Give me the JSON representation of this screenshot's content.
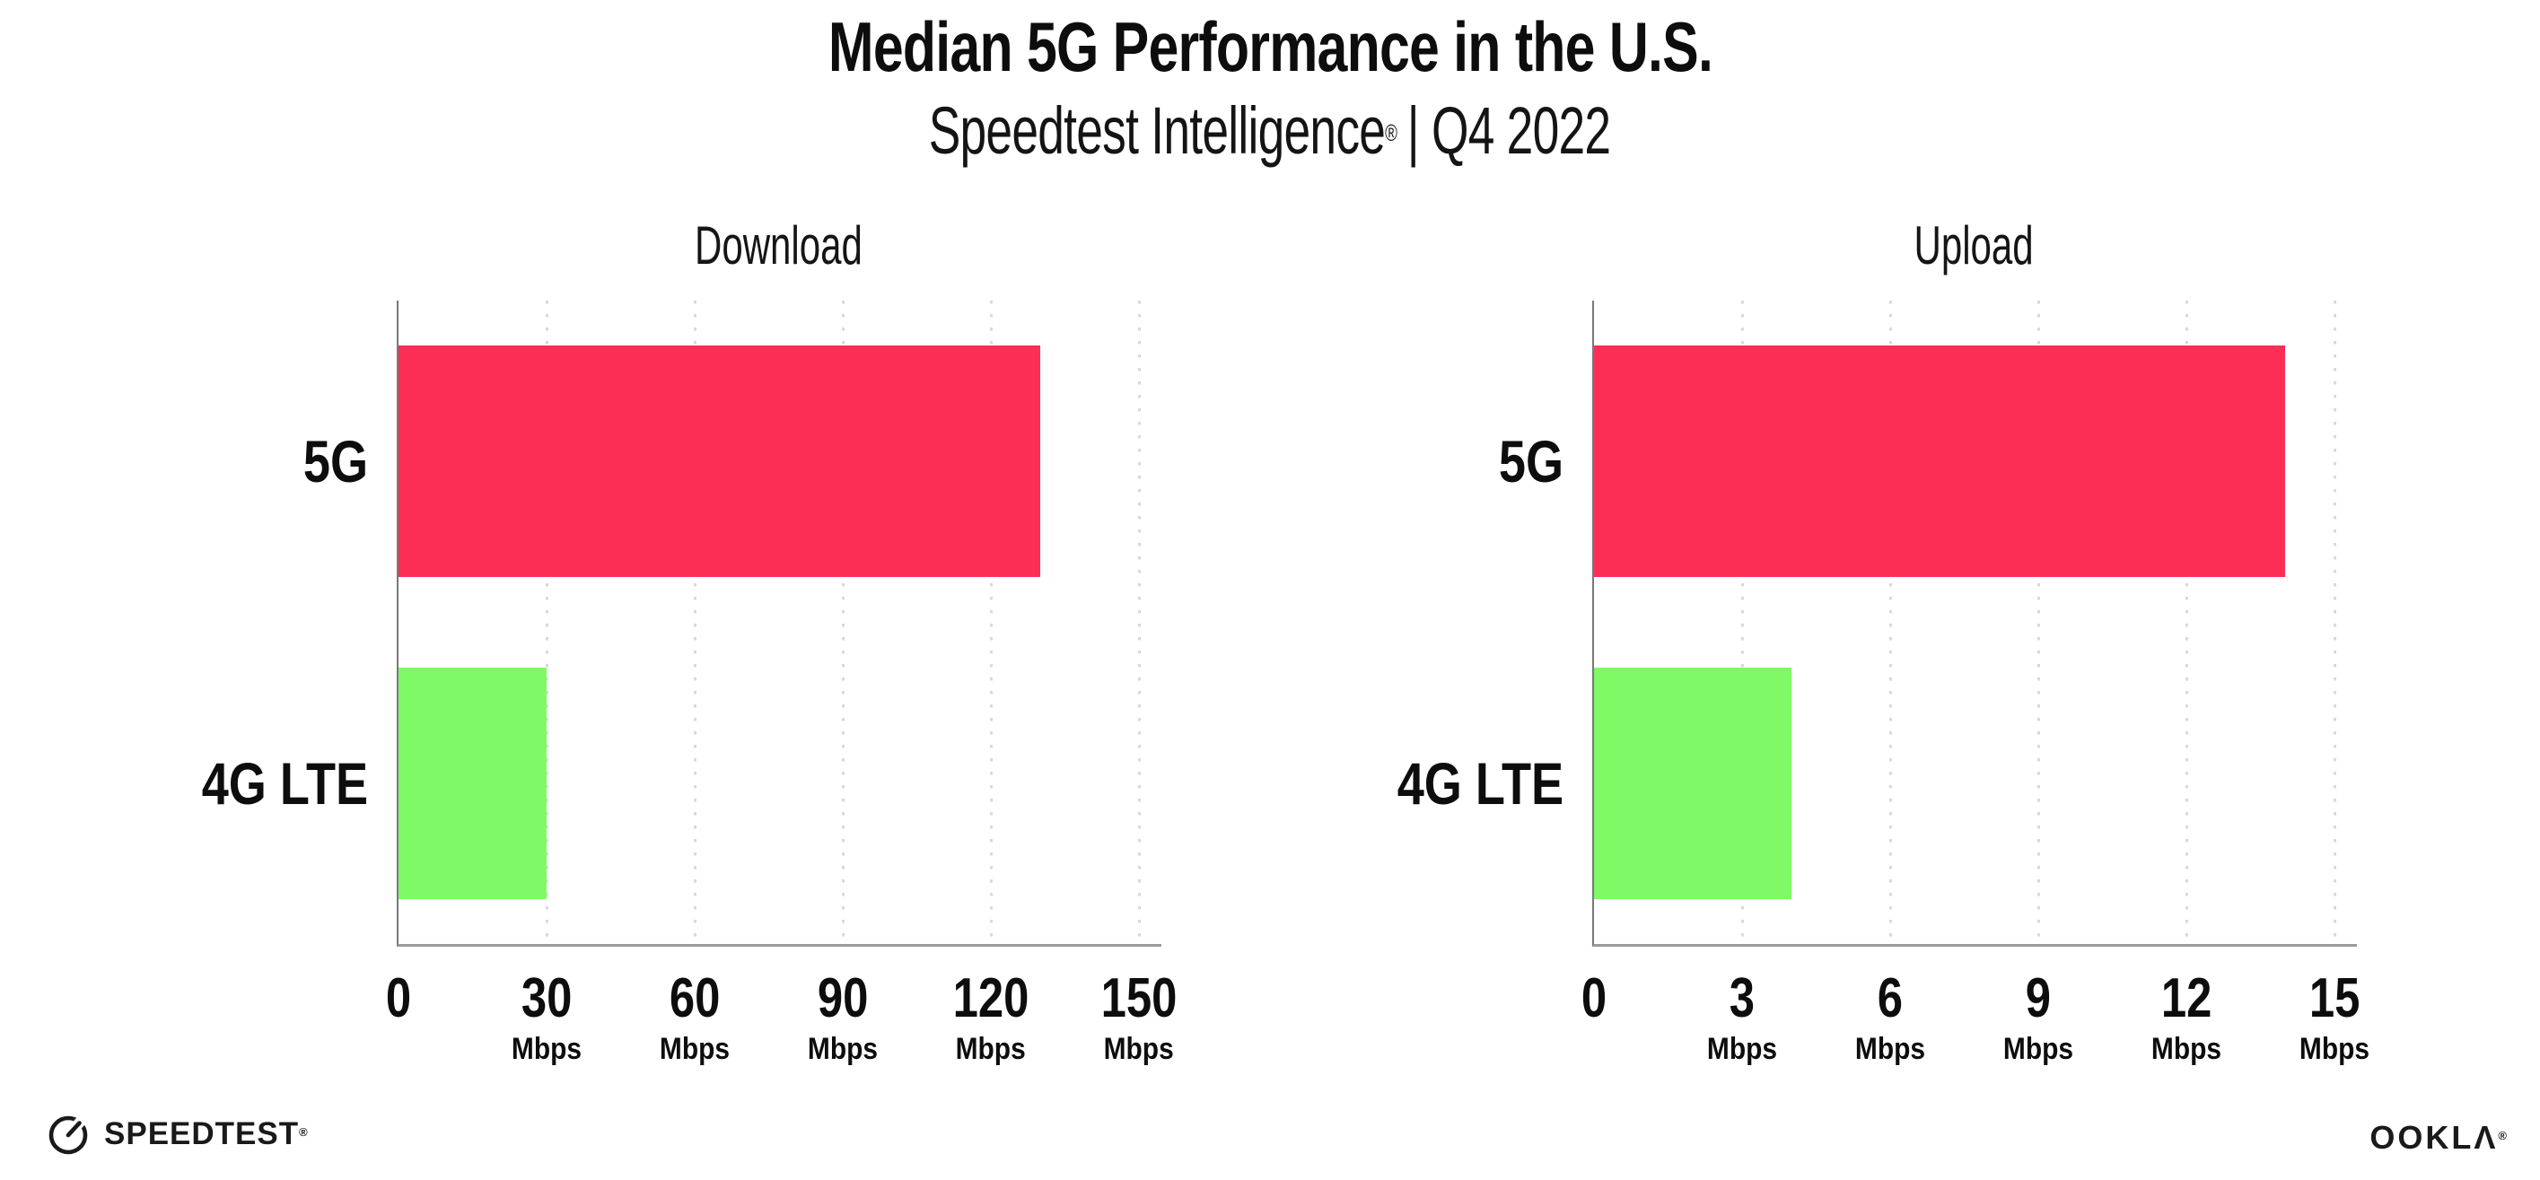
{
  "header": {
    "title": "Median 5G Performance in the U.S.",
    "subtitle_name": "Speedtest Intelligence",
    "subtitle_reg": "®",
    "subtitle_rest": "| Q4 2022"
  },
  "footer": {
    "speedtest_label": "SPEEDTEST",
    "speedtest_reg": "®",
    "ookla_prefix": "OOKL",
    "ookla_lambda": "Λ",
    "ookla_reg": "®"
  },
  "colors": {
    "bar_5g": "#fc2e56",
    "bar_4g_lte": "#80f966",
    "axis_line": "#9a9aa0",
    "gridline": "#d8d8e2",
    "text": "#0d0d0d"
  },
  "chart_data": [
    {
      "type": "bar",
      "orientation": "horizontal",
      "title": "Download",
      "categories": [
        "5G",
        "4G LTE"
      ],
      "values": [
        130,
        30
      ],
      "unit": "Mbps",
      "xticks": [
        0,
        30,
        60,
        90,
        120,
        150
      ],
      "xlim": [
        0,
        154
      ],
      "colors": [
        "#fc2e56",
        "#80f966"
      ],
      "grid": "vertical-dotted",
      "legend": "none"
    },
    {
      "type": "bar",
      "orientation": "horizontal",
      "title": "Upload",
      "categories": [
        "5G",
        "4G LTE"
      ],
      "values": [
        14,
        4
      ],
      "unit": "Mbps",
      "xticks": [
        0,
        3,
        6,
        9,
        12,
        15
      ],
      "xlim": [
        0,
        15.4
      ],
      "colors": [
        "#fc2e56",
        "#80f966"
      ],
      "grid": "vertical-dotted",
      "legend": "none"
    }
  ]
}
